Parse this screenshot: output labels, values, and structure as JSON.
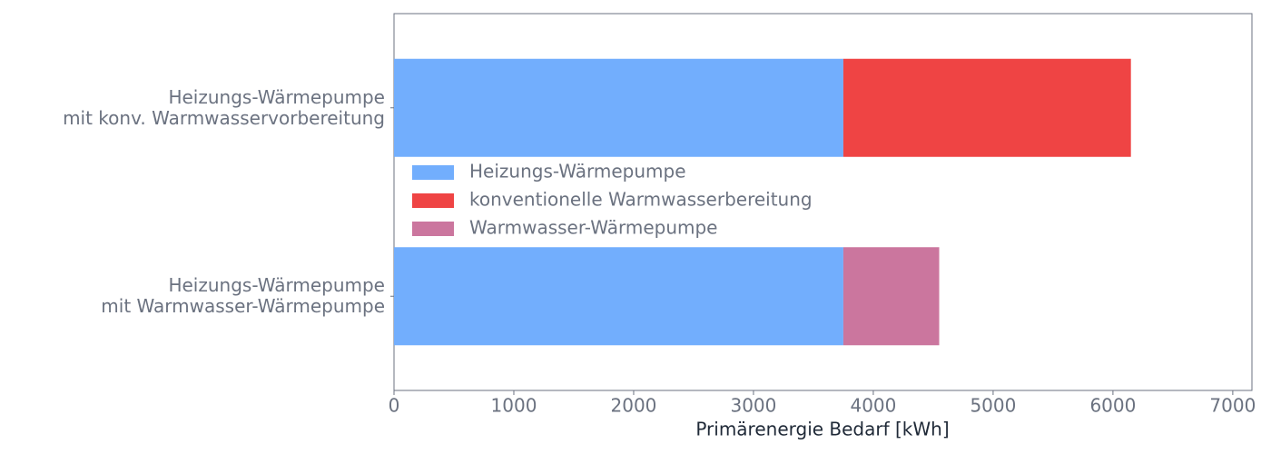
{
  "chart_data": {
    "type": "barh-stacked",
    "categories": [
      "Heizungs-Wärmepumpe\nmit konv. Warmwasservorbereitung",
      "Heizungs-Wärmepumpe\nmit Warmwasser-Wärmepumpe"
    ],
    "series": [
      {
        "name": "Heizungs-Wärmepumpe",
        "color": "#72aefd",
        "values": [
          3750,
          3750
        ]
      },
      {
        "name": "konventionelle Warmwasserbereitung",
        "color": "#ef4444",
        "values": [
          2400,
          null
        ]
      },
      {
        "name": "Warmwasser-Wärmepumpe",
        "color": "#cb769e",
        "values": [
          null,
          800
        ]
      }
    ],
    "xlabel": "Primärenergie Bedarf [kWh]",
    "xlim": [
      0,
      7160
    ],
    "xticks": [
      0,
      1000,
      2000,
      3000,
      4000,
      5000,
      6000,
      7000
    ],
    "legend": "center-left"
  }
}
